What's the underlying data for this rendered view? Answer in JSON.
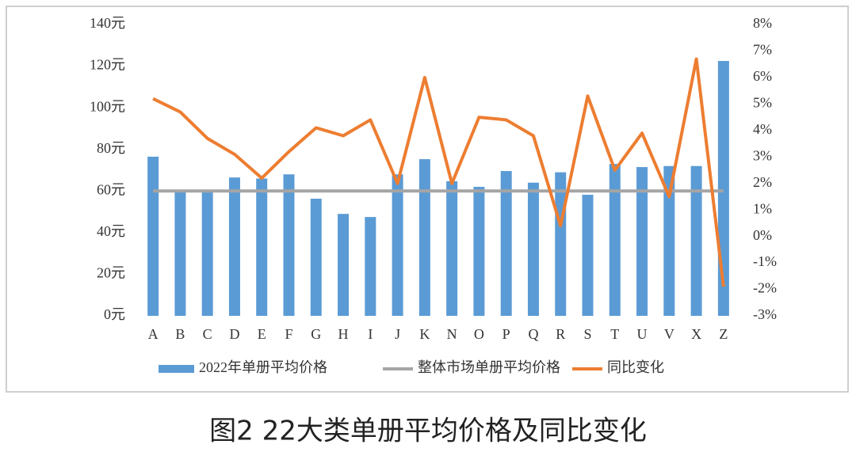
{
  "chart_data": {
    "type": "combo",
    "title": "图2  22大类单册平均价格及同比变化",
    "categories": [
      "A",
      "B",
      "C",
      "D",
      "E",
      "F",
      "G",
      "H",
      "I",
      "J",
      "K",
      "N",
      "O",
      "P",
      "Q",
      "R",
      "S",
      "T",
      "U",
      "V",
      "X",
      "Z"
    ],
    "series": [
      {
        "name": "2022年单册平均价格",
        "type": "bar",
        "color": "#5b9bd5",
        "values": [
          76.5,
          59.5,
          59.5,
          66.5,
          66,
          68,
          56.3,
          49,
          47.5,
          68,
          75.3,
          64.7,
          62,
          69.6,
          64,
          69,
          58.2,
          73,
          71.5,
          72,
          72,
          122.5
        ]
      },
      {
        "name": "整体市场单册平均价格",
        "type": "line",
        "color": "#a5a5a5",
        "values": [
          60,
          60,
          60,
          60,
          60,
          60,
          60,
          60,
          60,
          60,
          60,
          60,
          60,
          60,
          60,
          60,
          60,
          60,
          60,
          60,
          60,
          60
        ]
      },
      {
        "name": "同比变化",
        "type": "line",
        "axis": "y2",
        "color": "#ed7d31",
        "values": [
          5.2,
          4.7,
          3.7,
          3.1,
          2.2,
          3.2,
          4.1,
          3.8,
          4.4,
          2.0,
          6.0,
          2.0,
          4.5,
          4.4,
          3.8,
          0.4,
          5.3,
          2.5,
          3.9,
          1.5,
          6.7,
          -1.9
        ]
      }
    ],
    "ylim": [
      0,
      140
    ],
    "yticks": [
      {
        "value": 0,
        "label": "0元"
      },
      {
        "value": 20,
        "label": "20元"
      },
      {
        "value": 40,
        "label": "40元"
      },
      {
        "value": 60,
        "label": "60元"
      },
      {
        "value": 80,
        "label": "80元"
      },
      {
        "value": 100,
        "label": "100元"
      },
      {
        "value": 120,
        "label": "120元"
      },
      {
        "value": 140,
        "label": "140元"
      }
    ],
    "y2lim": [
      -3,
      8
    ],
    "y2ticks": [
      {
        "value": -3,
        "label": "-3%"
      },
      {
        "value": -2,
        "label": "-2%"
      },
      {
        "value": -1,
        "label": "-1%"
      },
      {
        "value": 0,
        "label": "0%"
      },
      {
        "value": 1,
        "label": "1%"
      },
      {
        "value": 2,
        "label": "2%"
      },
      {
        "value": 3,
        "label": "3%"
      },
      {
        "value": 4,
        "label": "4%"
      },
      {
        "value": 5,
        "label": "5%"
      },
      {
        "value": 6,
        "label": "6%"
      },
      {
        "value": 7,
        "label": "7%"
      },
      {
        "value": 8,
        "label": "8%"
      }
    ],
    "legend": "bottom"
  }
}
